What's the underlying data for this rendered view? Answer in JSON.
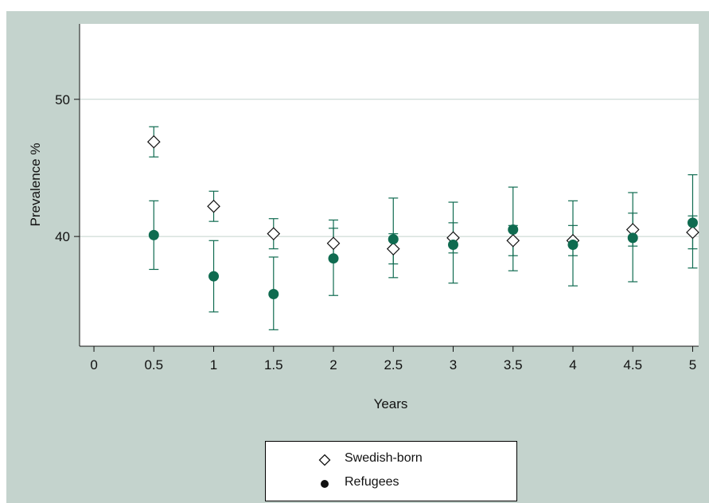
{
  "chart_data": {
    "type": "scatter",
    "xlabel": "Years",
    "ylabel": "Prevalence %",
    "xlim": [
      -0.12,
      5.05
    ],
    "ylim": [
      32,
      55.5
    ],
    "x_ticks": [
      "0",
      "0.5",
      "1",
      "1.5",
      "2",
      "2.5",
      "3",
      "3.5",
      "4",
      "4.5",
      "5"
    ],
    "y_ticks": [
      "40",
      "50"
    ],
    "grid": "horizontal lines at y ticks",
    "legend_position": "bottom",
    "series": [
      {
        "name": "Swedish-born",
        "marker": "hollow diamond",
        "color": "#111111",
        "points": [
          {
            "x": 0.5,
            "y": 46.9,
            "low": 45.8,
            "high": 48.0
          },
          {
            "x": 1.0,
            "y": 42.2,
            "low": 41.1,
            "high": 43.3
          },
          {
            "x": 1.5,
            "y": 40.2,
            "low": 39.1,
            "high": 41.3
          },
          {
            "x": 2.0,
            "y": 39.5,
            "low": 38.4,
            "high": 40.6
          },
          {
            "x": 2.5,
            "y": 39.1,
            "low": 38.0,
            "high": 40.2
          },
          {
            "x": 3.0,
            "y": 39.9,
            "low": 38.8,
            "high": 41.0
          },
          {
            "x": 3.5,
            "y": 39.7,
            "low": 38.6,
            "high": 40.8
          },
          {
            "x": 4.0,
            "y": 39.7,
            "low": 38.6,
            "high": 40.8
          },
          {
            "x": 4.5,
            "y": 40.5,
            "low": 39.3,
            "high": 41.7
          },
          {
            "x": 5.0,
            "y": 40.3,
            "low": 39.1,
            "high": 41.5
          }
        ]
      },
      {
        "name": "Refugees",
        "marker": "filled circle",
        "color": "#0f6b50",
        "points": [
          {
            "x": 0.5,
            "y": 40.1,
            "low": 37.6,
            "high": 42.6
          },
          {
            "x": 1.0,
            "y": 37.1,
            "low": 34.5,
            "high": 39.7
          },
          {
            "x": 1.5,
            "y": 35.8,
            "low": 33.2,
            "high": 38.5
          },
          {
            "x": 2.0,
            "y": 38.4,
            "low": 35.7,
            "high": 41.2
          },
          {
            "x": 2.5,
            "y": 39.8,
            "low": 37.0,
            "high": 42.8
          },
          {
            "x": 3.0,
            "y": 39.4,
            "low": 36.6,
            "high": 42.5
          },
          {
            "x": 3.5,
            "y": 40.5,
            "low": 37.5,
            "high": 43.6
          },
          {
            "x": 4.0,
            "y": 39.4,
            "low": 36.4,
            "high": 42.6
          },
          {
            "x": 4.5,
            "y": 39.9,
            "low": 36.7,
            "high": 43.2
          },
          {
            "x": 5.0,
            "y": 41.0,
            "low": 37.7,
            "high": 44.5
          }
        ]
      }
    ]
  },
  "colors": {
    "background": "#c4d3cd",
    "plot_area": "#ffffff",
    "grid": "#c4d3cd",
    "error_bars": "#0f6b50"
  }
}
